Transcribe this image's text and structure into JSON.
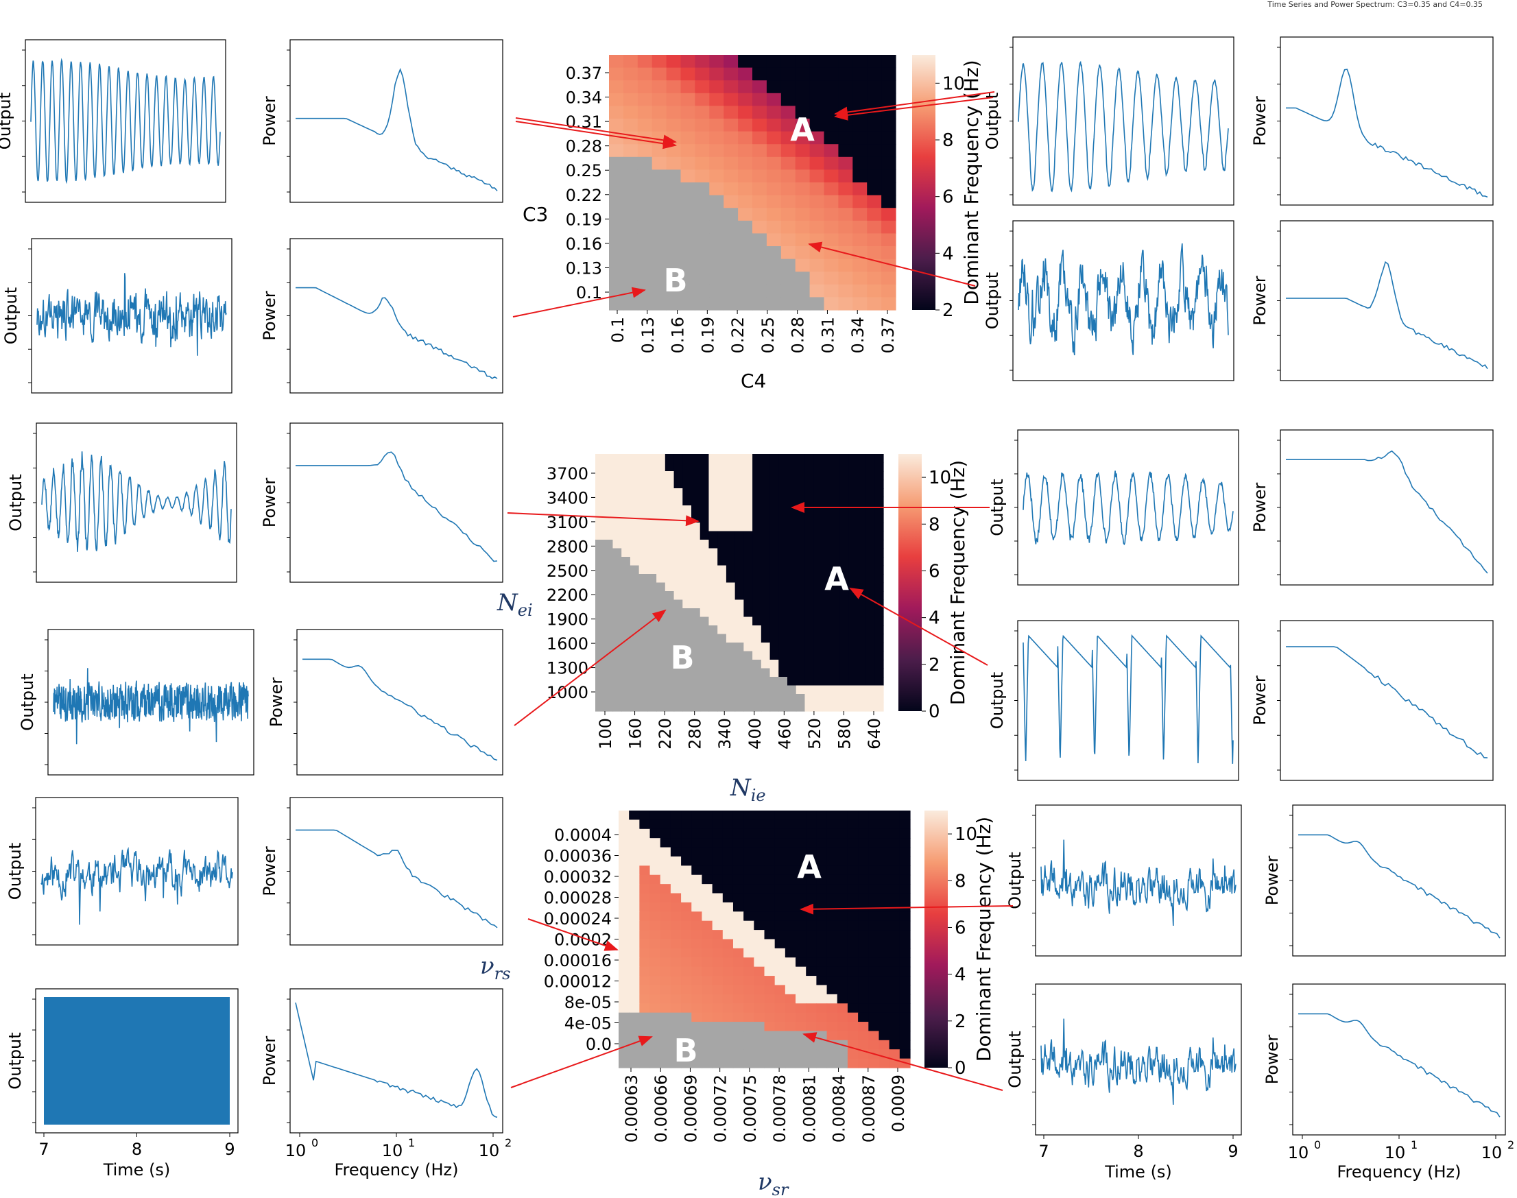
{
  "figure": {
    "suptitle": "Time Series and Power Spectrum: C3=0.35 and C4=0.35",
    "labels": {
      "output": "Output",
      "power": "Power",
      "time": "Time (s)",
      "frequency": "Frequency (Hz)",
      "time_ticks": [
        "7",
        "8",
        "9"
      ],
      "freq_ticks": [
        "10",
        "10",
        "10"
      ],
      "freq_exps": [
        "0",
        "1",
        "2"
      ]
    }
  },
  "colors": {
    "trace": "#1f77b4",
    "arrow": "#e8191b",
    "masked": "#a6a6a6",
    "cmap": [
      "#03051a",
      "#4c1d4b",
      "#a11a5b",
      "#e83f3f",
      "#f69c73",
      "#faebdd"
    ]
  },
  "chart_data": [
    {
      "type": "heatmap",
      "name": "heatmap-c3-c4",
      "ylabel": "C3",
      "xlabel": "C4",
      "yticks": [
        "0.37",
        "0.34",
        "0.31",
        "0.28",
        "0.25",
        "0.22",
        "0.19",
        "0.16",
        "0.13",
        "0.1"
      ],
      "xticks": [
        "0.1",
        "0.13",
        "0.16",
        "0.19",
        "0.22",
        "0.25",
        "0.28",
        "0.31",
        "0.34",
        "0.37"
      ],
      "colorbar_label": "Dominant Frequency (Hz)",
      "colorbar_range": [
        2,
        11
      ],
      "colorbar_ticks": [
        "10",
        "8",
        "6",
        "4",
        "2"
      ],
      "region_labels": [
        "A",
        "B"
      ]
    },
    {
      "type": "heatmap",
      "name": "heatmap-nei-nie",
      "ylabel": "N_ei",
      "xlabel": "N_ie",
      "yticks": [
        "3700",
        "3400",
        "3100",
        "2800",
        "2500",
        "2200",
        "1900",
        "1600",
        "1300",
        "1000"
      ],
      "xticks": [
        "100",
        "160",
        "220",
        "280",
        "340",
        "400",
        "460",
        "520",
        "580",
        "640"
      ],
      "colorbar_label": "Dominant Frequency (Hz)",
      "colorbar_range": [
        0,
        11
      ],
      "colorbar_ticks": [
        "10",
        "8",
        "6",
        "4",
        "2",
        "0"
      ],
      "region_labels": [
        "A",
        "B"
      ]
    },
    {
      "type": "heatmap",
      "name": "heatmap-vrs-vsr",
      "ylabel": "ν_rs",
      "xlabel": "ν_sr",
      "yticks": [
        "0.0004",
        "0.00036",
        "0.00032",
        "0.00028",
        "0.00024",
        "0.0002",
        "0.00016",
        "0.00012",
        "8e-05",
        "4e-05",
        "0.0"
      ],
      "xticks": [
        "0.00063",
        "0.00066",
        "0.00069",
        "0.00072",
        "0.00075",
        "0.00078",
        "0.00081",
        "0.00084",
        "0.00087",
        "0.0009"
      ],
      "colorbar_label": "Dominant Frequency (Hz)",
      "colorbar_range": [
        0,
        11
      ],
      "colorbar_ticks": [
        "10",
        "8",
        "6",
        "4",
        "2",
        "0"
      ],
      "region_labels": [
        "A",
        "B"
      ]
    }
  ]
}
